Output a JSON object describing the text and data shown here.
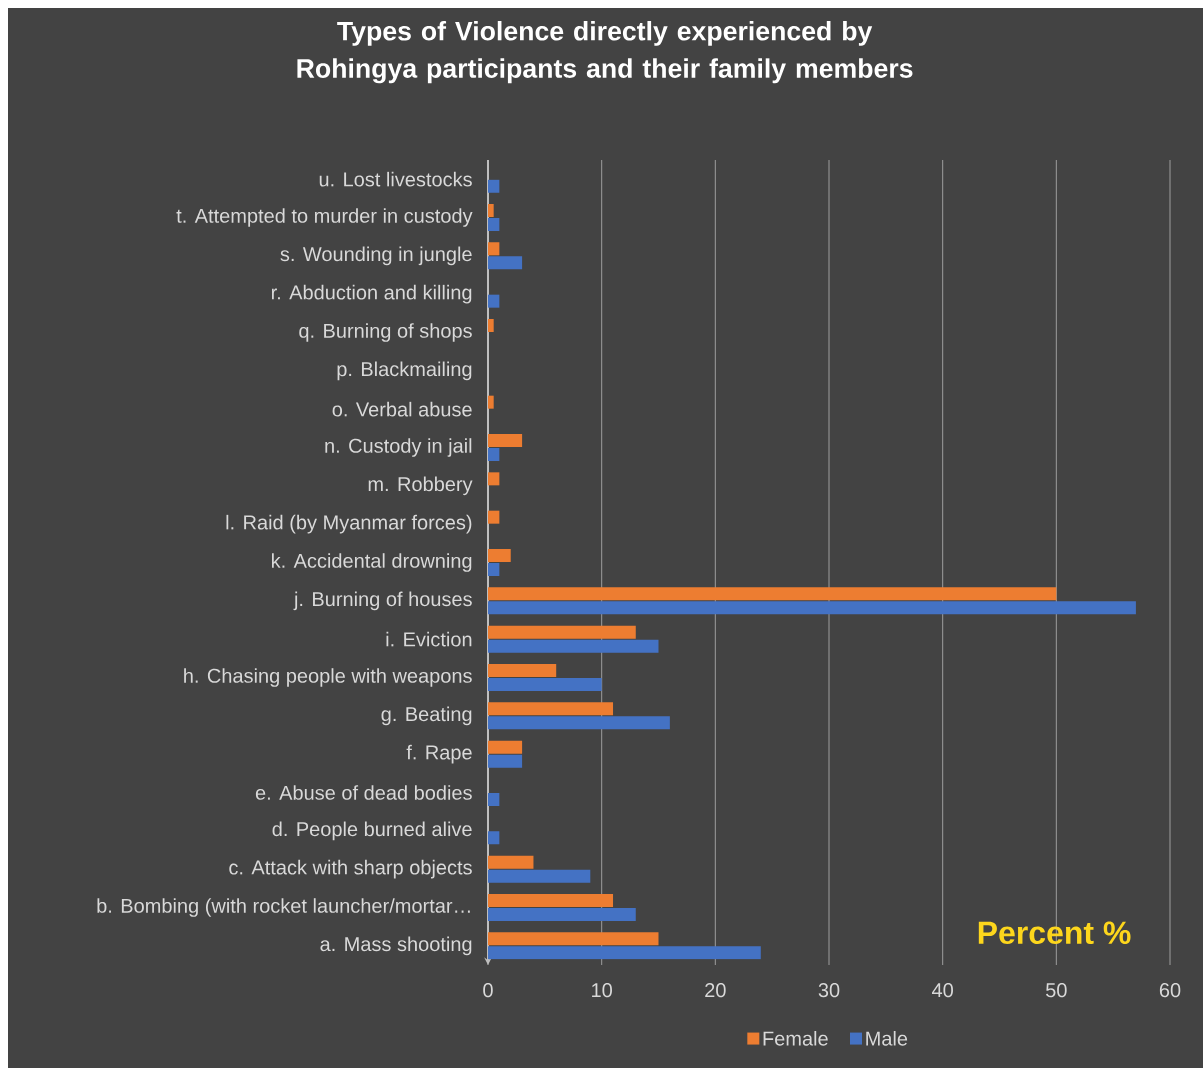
{
  "chart_data": {
    "type": "bar",
    "orientation": "horizontal",
    "title": "Types of Violence directly experienced by Rohingya participants and their family members",
    "xlabel": "Percent %",
    "categories": [
      "u. Lost livestocks",
      "t. Attempted to murder in custody",
      "s. Wounding in jungle",
      "r. Abduction and killing",
      "q. Burning of shops",
      "p. Blackmailing",
      "o. Verbal abuse",
      "n. Custody in jail",
      "m. Robbery",
      "l. Raid (by Myanmar forces)",
      "k. Accidental drowning",
      "j. Burning of houses",
      "i. Eviction",
      "h. Chasing people with weapons",
      "g. Beating",
      "f. Rape",
      "e. Abuse of dead bodies",
      "d. People burned alive",
      "c. Attack with sharp objects",
      "b. Bombing (with rocket launcher/mortar…",
      "a. Mass shooting"
    ],
    "series": [
      {
        "name": "Female",
        "color": "#ed7d31",
        "values": [
          0,
          0.5,
          1,
          0,
          0.5,
          0,
          0.5,
          3,
          1,
          1,
          2,
          50,
          13,
          6,
          11,
          3,
          0,
          0,
          4,
          11,
          15
        ]
      },
      {
        "name": "Male",
        "color": "#4472c4",
        "values": [
          1,
          1,
          3,
          1,
          0,
          0,
          0,
          1,
          0,
          0,
          1,
          57,
          15,
          10,
          16,
          3,
          1,
          1,
          9,
          13,
          24
        ]
      }
    ],
    "xlim": [
      0,
      60
    ],
    "xticks": [
      0,
      10,
      20,
      30,
      40,
      50,
      60
    ],
    "grid": "x",
    "legend": "bottom"
  }
}
